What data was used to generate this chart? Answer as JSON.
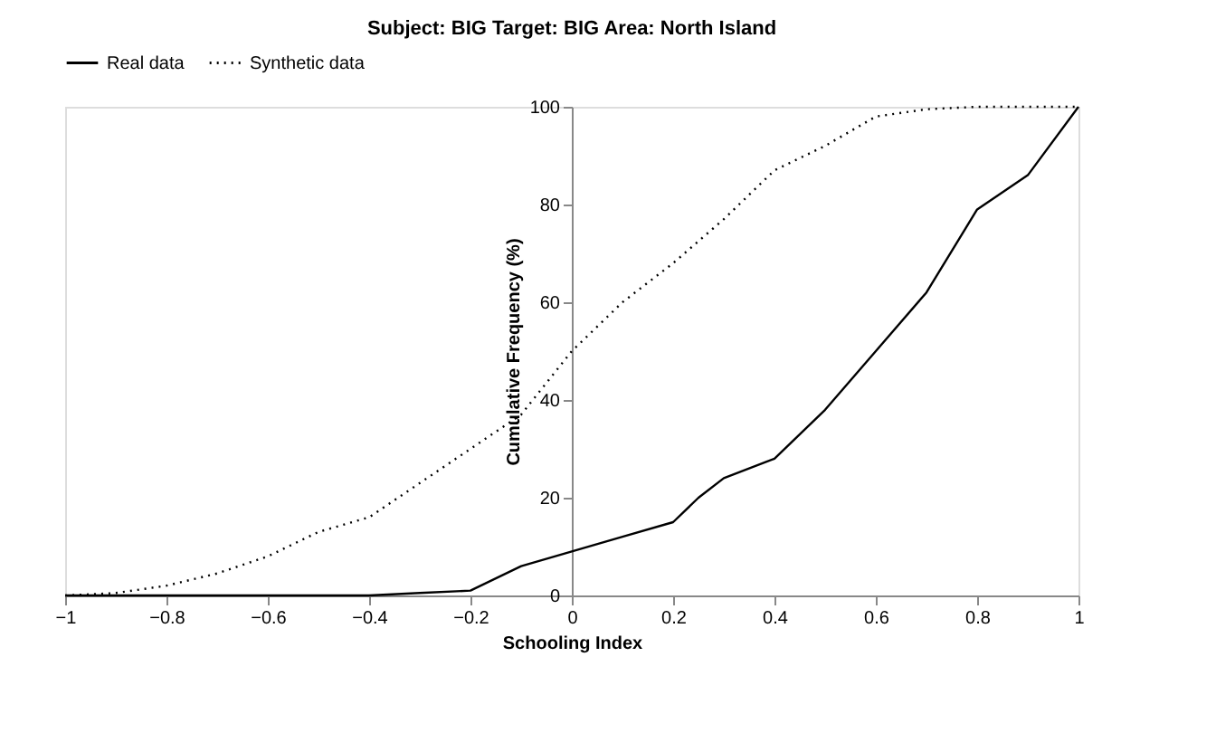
{
  "chart_data": {
    "type": "line",
    "title": "Subject: BIG  Target: BIG  Area: North Island",
    "xlabel": "Schooling Index",
    "ylabel": "Cumulative Frequency (%)",
    "series": [
      {
        "name": "Real data",
        "color": "#000000",
        "line_style": "solid",
        "x": [
          -1,
          -0.8,
          -0.6,
          -0.4,
          -0.3,
          -0.2,
          -0.1,
          0,
          0.1,
          0.2,
          0.25,
          0.3,
          0.4,
          0.5,
          0.6,
          0.7,
          0.8,
          0.9,
          1
        ],
        "values": [
          0,
          0,
          0,
          0,
          0.5,
          1,
          6,
          9,
          12,
          15,
          20,
          24,
          28,
          38,
          50,
          62,
          79,
          86,
          100
        ]
      },
      {
        "name": "Synthetic data",
        "color": "#000000",
        "line_style": "dotted",
        "x": [
          -1,
          -0.9,
          -0.8,
          -0.7,
          -0.6,
          -0.5,
          -0.4,
          -0.3,
          -0.2,
          -0.1,
          0,
          0.1,
          0.2,
          0.3,
          0.4,
          0.5,
          0.6,
          0.7,
          0.8,
          0.9,
          1
        ],
        "values": [
          0,
          0.5,
          2,
          4.5,
          8,
          13,
          16,
          23,
          30,
          37,
          50,
          60,
          68,
          77,
          87,
          92,
          98,
          99.5,
          100,
          100,
          100
        ]
      }
    ],
    "xlim": [
      -1,
      1
    ],
    "xticks": [
      -1,
      -0.8,
      -0.6,
      -0.4,
      -0.2,
      0,
      0.2,
      0.4,
      0.6,
      0.8,
      1
    ],
    "ylim": [
      0,
      100
    ],
    "yticks": [
      0,
      20,
      40,
      60,
      80,
      100
    ],
    "grid": false,
    "legend": "top",
    "marker": "none"
  }
}
